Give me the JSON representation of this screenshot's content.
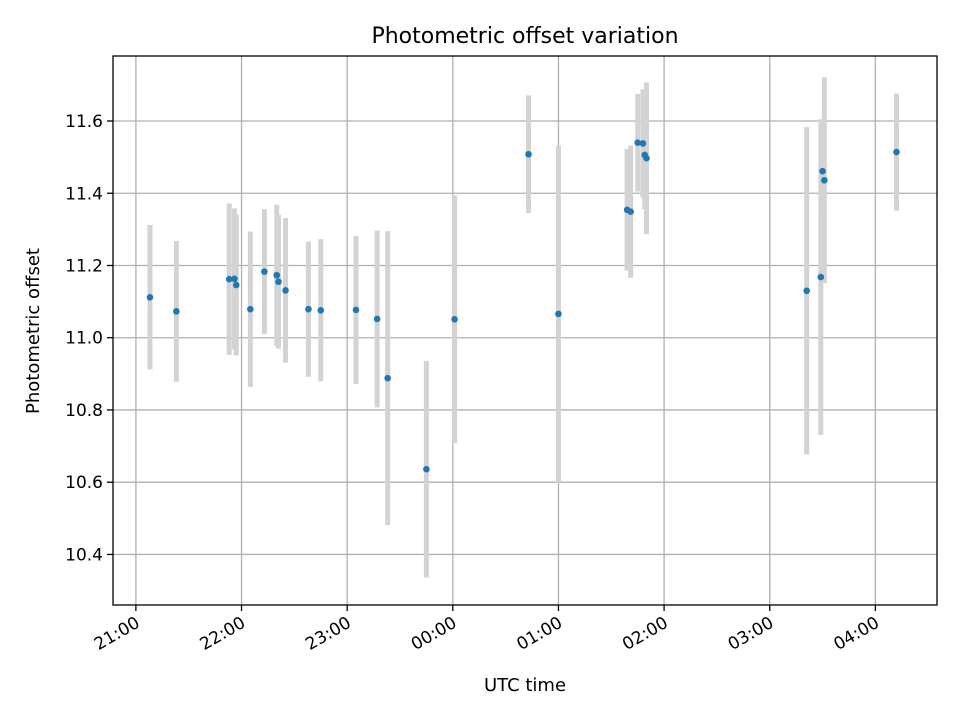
{
  "chart_data": {
    "type": "scatter",
    "title": "Photometric offset variation",
    "xlabel": "UTC time",
    "ylabel": "Photometric offset",
    "xlim": [
      "20:47",
      "04:35"
    ],
    "ylim": [
      10.26,
      11.78
    ],
    "x_ticks": [
      "21:00",
      "22:00",
      "23:00",
      "00:00",
      "01:00",
      "02:00",
      "03:00",
      "04:00"
    ],
    "y_ticks": [
      "10.4",
      "10.6",
      "10.8",
      "11.0",
      "11.2",
      "11.4",
      "11.6"
    ],
    "grid": true,
    "point_color": "#1f77b4",
    "errorbar_color": "#d3d3d3",
    "points": [
      {
        "t": "21:08",
        "y": 11.112,
        "err": 0.2
      },
      {
        "t": "21:23",
        "y": 11.073,
        "err": 0.195
      },
      {
        "t": "21:53",
        "y": 11.162,
        "err": 0.21
      },
      {
        "t": "21:56",
        "y": 11.163,
        "err": 0.195
      },
      {
        "t": "21:57",
        "y": 11.146,
        "err": 0.195
      },
      {
        "t": "22:05",
        "y": 11.079,
        "err": 0.215
      },
      {
        "t": "22:13",
        "y": 11.183,
        "err": 0.173
      },
      {
        "t": "22:20",
        "y": 11.173,
        "err": 0.195
      },
      {
        "t": "22:21",
        "y": 11.155,
        "err": 0.185
      },
      {
        "t": "22:25",
        "y": 11.131,
        "err": 0.2
      },
      {
        "t": "22:38",
        "y": 11.079,
        "err": 0.187
      },
      {
        "t": "22:45",
        "y": 11.076,
        "err": 0.197
      },
      {
        "t": "23:05",
        "y": 11.077,
        "err": 0.205
      },
      {
        "t": "23:17",
        "y": 11.052,
        "err": 0.245
      },
      {
        "t": "23:23",
        "y": 10.888,
        "err": 0.407
      },
      {
        "t": "23:45",
        "y": 10.636,
        "err": 0.3
      },
      {
        "t": "00:01",
        "y": 11.051,
        "err": 0.343
      },
      {
        "t": "00:43",
        "y": 11.508,
        "err": 0.163
      },
      {
        "t": "01:00",
        "y": 11.066,
        "err": 0.467
      },
      {
        "t": "01:39",
        "y": 11.354,
        "err": 0.168
      },
      {
        "t": "01:41",
        "y": 11.349,
        "err": 0.183
      },
      {
        "t": "01:45",
        "y": 11.54,
        "err": 0.135
      },
      {
        "t": "01:48",
        "y": 11.538,
        "err": 0.15
      },
      {
        "t": "01:49",
        "y": 11.506,
        "err": 0.15
      },
      {
        "t": "01:50",
        "y": 11.497,
        "err": 0.21
      },
      {
        "t": "03:21",
        "y": 11.13,
        "err": 0.453
      },
      {
        "t": "03:29",
        "y": 11.168,
        "err": 0.437
      },
      {
        "t": "03:30",
        "y": 11.461,
        "err": 0.13
      },
      {
        "t": "03:31",
        "y": 11.436,
        "err": 0.285
      },
      {
        "t": "04:12",
        "y": 11.514,
        "err": 0.162
      }
    ]
  }
}
